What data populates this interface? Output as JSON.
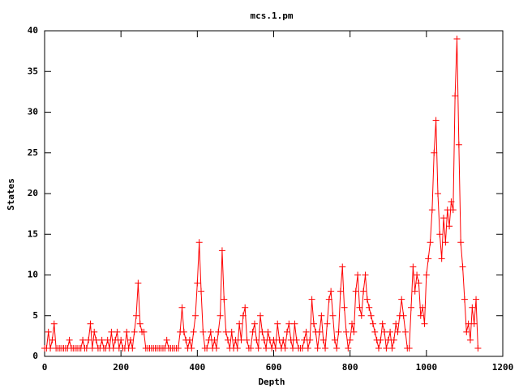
{
  "chart_data": {
    "type": "line",
    "title": "mcs.1.pm",
    "xlabel": "Depth",
    "ylabel": "States",
    "color": "#ff0000",
    "markers": true,
    "xlim": [
      0,
      1200
    ],
    "xticks": [
      0,
      200,
      400,
      600,
      800,
      1000,
      1200
    ],
    "ylim": [
      0,
      40
    ],
    "yticks": [
      0,
      5,
      10,
      15,
      20,
      25,
      30,
      35,
      40
    ],
    "x": [
      0,
      5,
      10,
      15,
      20,
      25,
      30,
      35,
      40,
      45,
      50,
      55,
      60,
      65,
      70,
      75,
      80,
      85,
      90,
      95,
      100,
      105,
      110,
      115,
      120,
      125,
      130,
      135,
      140,
      145,
      150,
      155,
      160,
      165,
      170,
      175,
      180,
      185,
      190,
      195,
      200,
      205,
      210,
      215,
      220,
      225,
      230,
      235,
      240,
      245,
      250,
      255,
      260,
      265,
      270,
      275,
      280,
      285,
      290,
      295,
      300,
      305,
      310,
      315,
      320,
      325,
      330,
      335,
      340,
      345,
      350,
      355,
      360,
      365,
      370,
      375,
      380,
      385,
      390,
      395,
      400,
      405,
      410,
      415,
      420,
      425,
      430,
      435,
      440,
      445,
      450,
      455,
      460,
      465,
      470,
      475,
      480,
      485,
      490,
      495,
      500,
      505,
      510,
      515,
      520,
      525,
      530,
      535,
      540,
      545,
      550,
      555,
      560,
      565,
      570,
      575,
      580,
      585,
      590,
      595,
      600,
      605,
      610,
      615,
      620,
      625,
      630,
      635,
      640,
      645,
      650,
      655,
      660,
      665,
      670,
      675,
      680,
      685,
      690,
      695,
      700,
      705,
      710,
      715,
      720,
      725,
      730,
      735,
      740,
      745,
      750,
      755,
      760,
      765,
      770,
      775,
      780,
      785,
      790,
      795,
      800,
      805,
      810,
      815,
      820,
      825,
      830,
      835,
      840,
      845,
      850,
      855,
      860,
      865,
      870,
      875,
      880,
      885,
      890,
      895,
      900,
      905,
      910,
      915,
      920,
      925,
      930,
      935,
      940,
      945,
      950,
      955,
      960,
      965,
      970,
      975,
      980,
      985,
      990,
      995,
      1000,
      1005,
      1010,
      1015,
      1020,
      1025,
      1030,
      1035,
      1040,
      1045,
      1050,
      1055,
      1060,
      1065,
      1070,
      1075,
      1080,
      1085,
      1090,
      1095,
      1100,
      1105,
      1110,
      1115,
      1120,
      1125,
      1130,
      1135
    ],
    "values": [
      1,
      1,
      3,
      1,
      2,
      4,
      1,
      1,
      1,
      1,
      1,
      1,
      1,
      2,
      1,
      1,
      1,
      1,
      1,
      1,
      2,
      1,
      1,
      2,
      4,
      1,
      3,
      2,
      1,
      1,
      2,
      1,
      1,
      2,
      1,
      3,
      1,
      2,
      3,
      1,
      2,
      1,
      1,
      3,
      1,
      2,
      1,
      3,
      5,
      9,
      4,
      3,
      3,
      1,
      1,
      1,
      1,
      1,
      1,
      1,
      1,
      1,
      1,
      1,
      2,
      1,
      1,
      1,
      1,
      1,
      1,
      3,
      6,
      3,
      2,
      1,
      2,
      1,
      3,
      5,
      9,
      14,
      8,
      3,
      1,
      1,
      2,
      3,
      1,
      2,
      1,
      3,
      5,
      13,
      7,
      3,
      2,
      1,
      3,
      1,
      2,
      1,
      4,
      2,
      5,
      6,
      2,
      1,
      1,
      3,
      4,
      2,
      1,
      5,
      3,
      2,
      1,
      3,
      2,
      1,
      2,
      1,
      4,
      2,
      1,
      2,
      1,
      3,
      4,
      2,
      1,
      4,
      2,
      1,
      1,
      1,
      2,
      3,
      1,
      2,
      7,
      4,
      3,
      1,
      3,
      5,
      2,
      1,
      4,
      7,
      8,
      5,
      2,
      1,
      3,
      8,
      11,
      6,
      3,
      1,
      2,
      4,
      3,
      8,
      10,
      6,
      5,
      8,
      10,
      7,
      6,
      5,
      4,
      3,
      2,
      1,
      2,
      4,
      3,
      1,
      2,
      3,
      1,
      2,
      4,
      3,
      5,
      7,
      5,
      3,
      1,
      1,
      6,
      11,
      8,
      10,
      9,
      5,
      6,
      4,
      10,
      12,
      14,
      18,
      25,
      29,
      20,
      15,
      12,
      17,
      14,
      18,
      16,
      19,
      18,
      32,
      39,
      26,
      14,
      11,
      7,
      3,
      4,
      2,
      6,
      4,
      7,
      1
    ]
  }
}
